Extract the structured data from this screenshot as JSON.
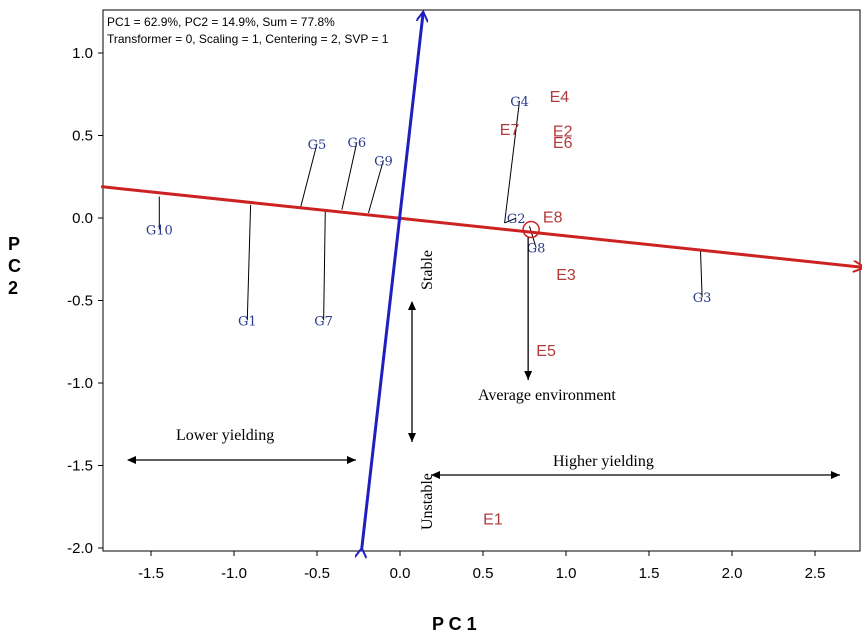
{
  "chart_data": {
    "type": "scatter",
    "subtype": "GGE biplot (average environment coordination view)",
    "info_lines": [
      "PC1 = 62.9%, PC2 = 14.9%, Sum = 77.8%",
      "Transformer = 0, Scaling = 1, Centering = 2, SVP = 1"
    ],
    "xlabel": "P C 1",
    "ylabel": "P\nC\n2",
    "xlim": [
      -1.8,
      2.8
    ],
    "ylim": [
      -2.0,
      1.25
    ],
    "xticks": [
      -1.5,
      -1.0,
      -0.5,
      0.0,
      0.5,
      1.0,
      1.5,
      2.0,
      2.5
    ],
    "xtick_labels": [
      "-1.5",
      "-1.0",
      "-0.5",
      "0.0",
      "0.5",
      "1.0",
      "1.5",
      "2.0",
      "2.5"
    ],
    "yticks": [
      1.0,
      0.5,
      0.0,
      -0.5,
      -1.0,
      -1.5,
      -2.0
    ],
    "ytick_labels": [
      "1.0",
      "0.5",
      "0.0",
      "-0.5",
      "-1.0",
      "-1.5",
      "-2.0"
    ],
    "genotypes": [
      {
        "label": "G1",
        "x": -0.92,
        "y": -0.62,
        "proj": [
          -0.9,
          0.08
        ]
      },
      {
        "label": "G2",
        "x": 0.7,
        "y": 0.0,
        "proj": [
          0.63,
          -0.03
        ]
      },
      {
        "label": "G3",
        "x": 1.82,
        "y": -0.48,
        "proj": [
          1.81,
          -0.19
        ]
      },
      {
        "label": "G4",
        "x": 0.72,
        "y": 0.71,
        "proj": [
          0.63,
          -0.03
        ]
      },
      {
        "label": "G5",
        "x": -0.5,
        "y": 0.45,
        "proj": [
          -0.6,
          0.06
        ]
      },
      {
        "label": "G6",
        "x": -0.26,
        "y": 0.46,
        "proj": [
          -0.35,
          0.05
        ]
      },
      {
        "label": "G7",
        "x": -0.46,
        "y": -0.62,
        "proj": [
          -0.45,
          0.05
        ]
      },
      {
        "label": "G8",
        "x": 0.82,
        "y": -0.18,
        "proj": [
          0.78,
          -0.05
        ]
      },
      {
        "label": "G9",
        "x": -0.1,
        "y": 0.35,
        "proj": [
          -0.19,
          0.03
        ]
      },
      {
        "label": "G10",
        "x": -1.45,
        "y": -0.07,
        "proj": [
          -1.45,
          0.13
        ]
      }
    ],
    "environments": [
      {
        "label": "E1",
        "x": 0.56,
        "y": -1.82
      },
      {
        "label": "E2",
        "x": 0.98,
        "y": 0.53
      },
      {
        "label": "E3",
        "x": 1.0,
        "y": -0.34
      },
      {
        "label": "E4",
        "x": 0.96,
        "y": 0.74
      },
      {
        "label": "E5",
        "x": 0.88,
        "y": -0.8
      },
      {
        "label": "E6",
        "x": 0.98,
        "y": 0.46
      },
      {
        "label": "E7",
        "x": 0.66,
        "y": 0.54
      },
      {
        "label": "E8",
        "x": 0.92,
        "y": 0.01
      }
    ],
    "aec_abscissa": {
      "start": [
        -1.8,
        0.19
      ],
      "end": [
        2.8,
        -0.3
      ],
      "color": "#cc2222"
    },
    "aec_ordinate": {
      "start": [
        -0.23,
        -2.0
      ],
      "end": [
        0.14,
        1.25
      ],
      "color": "#1f1fbf"
    },
    "average_environment_marker": {
      "x": 0.79,
      "y": -0.07
    },
    "annotations": {
      "average_environment": "Average environment",
      "lower_yielding": "Lower yielding",
      "higher_yielding": "Higher yielding",
      "stable": "Stable",
      "unstable": "Unstable"
    }
  }
}
